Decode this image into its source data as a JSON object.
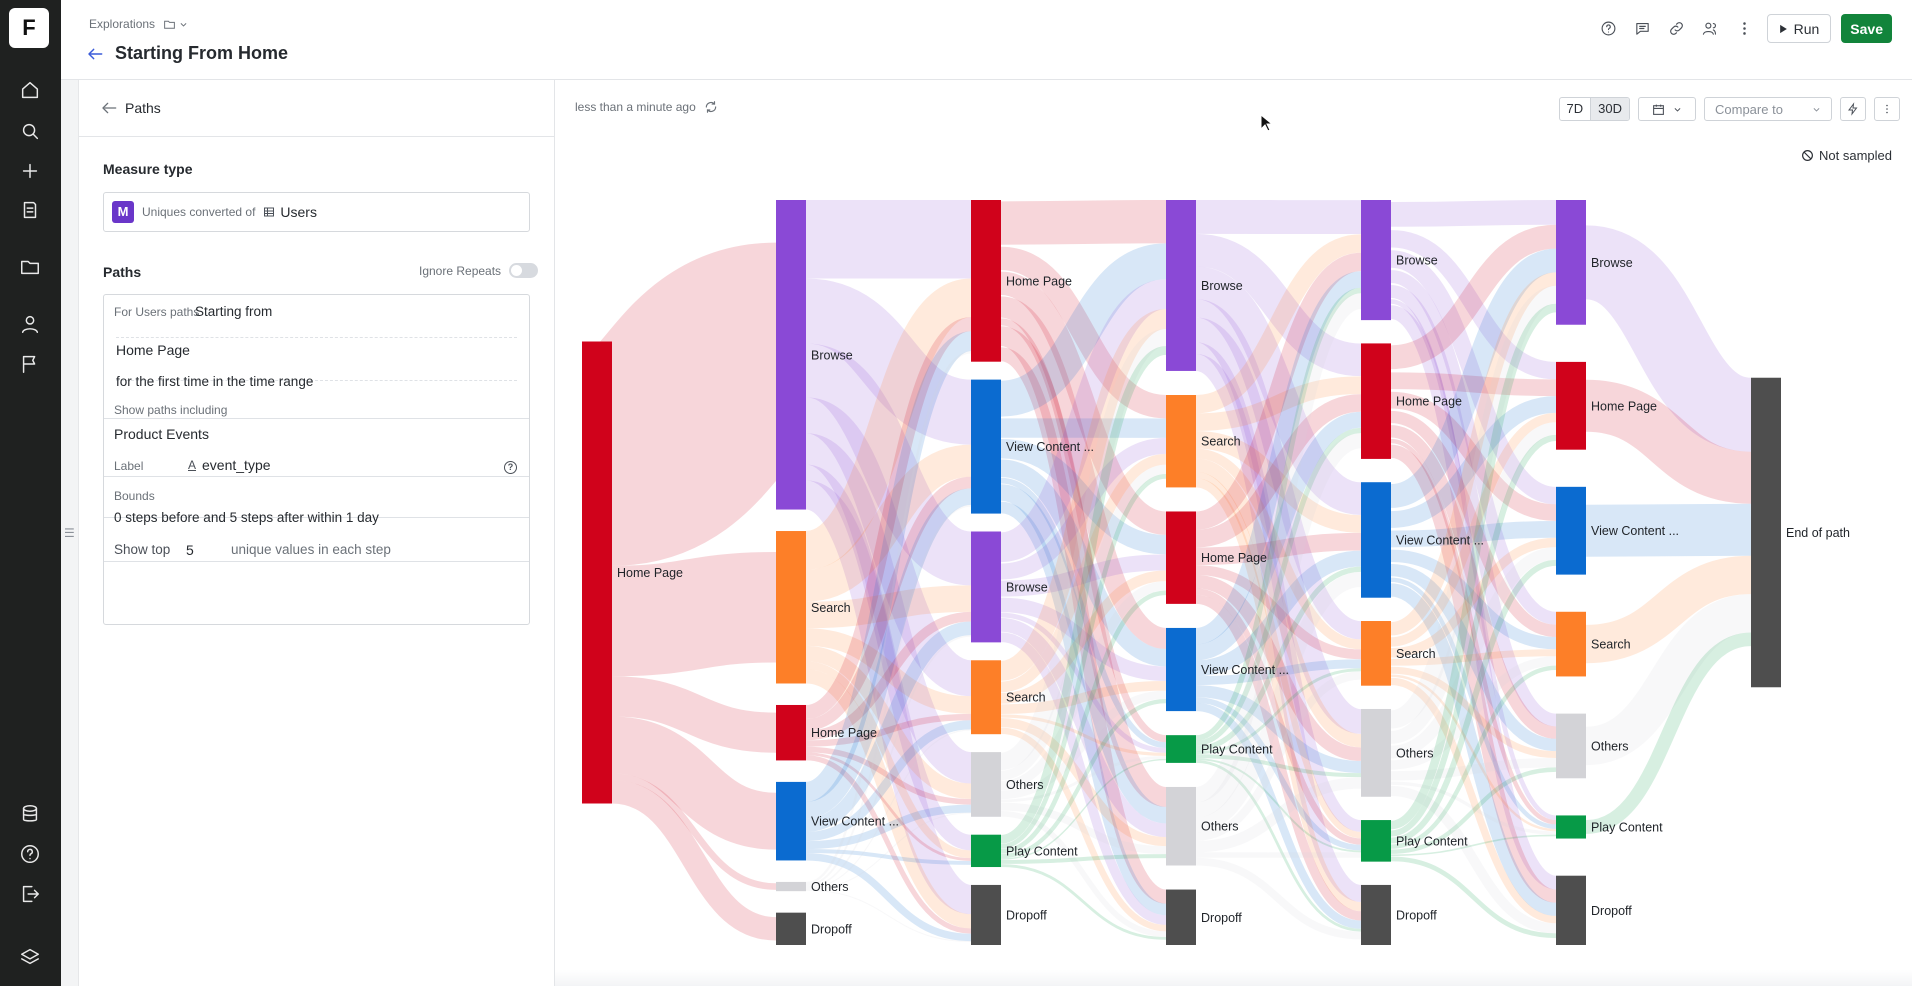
{
  "brand": {
    "logo_letter": "F",
    "accent": "#12843b"
  },
  "rail": {
    "icons": [
      "home-icon",
      "search-icon",
      "plus-icon",
      "notebook-icon",
      "folder-icon",
      "user-icon",
      "flag-icon"
    ],
    "bottom_icons": [
      "data-icon",
      "help-icon",
      "logout-icon",
      "layers-icon"
    ]
  },
  "header": {
    "breadcrumb": "Explorations",
    "title": "Starting From Home",
    "run_label": "Run",
    "save_label": "Save"
  },
  "panel": {
    "tab_label": "Paths",
    "measure_type_label": "Measure type",
    "measure_badge": "M",
    "measure_prefix": "Uniques converted of",
    "measure_entity": "Users",
    "paths_label": "Paths",
    "ignore_repeats_label": "Ignore Repeats",
    "ignore_repeats_on": false,
    "for_users_label": "For Users paths",
    "starting_from": "Starting from",
    "start_event": "Home Page",
    "first_time_text": "for the first time in the time range",
    "show_paths_label": "Show paths including",
    "show_paths_value": "Product Events",
    "label_label": "Label",
    "label_value": "event_type",
    "bounds_label": "Bounds",
    "bounds_value": "0 steps before and 5 steps after within 1 day",
    "show_top_label": "Show top",
    "show_top_value": "5",
    "show_top_suffix": "unique values in each step"
  },
  "toolbar": {
    "updated": "less than a minute ago",
    "range_7d": "7D",
    "range_30d": "30D",
    "selected_range": "30D",
    "compare_label": "Compare to",
    "not_sampled": "Not sampled"
  },
  "chart_data": {
    "type": "sankey",
    "colors": {
      "Home Page": "#d0021b",
      "Browse": "#8a49d6",
      "Search": "#fd7f28",
      "View Content ...": "#0b6bd0",
      "Play Content": "#079a47",
      "Others": "#d3d3d7",
      "Dropoff": "#4e4e4e",
      "End of path": "#4e4e4e"
    },
    "steps": [
      {
        "nodes": [
          {
            "label": "Home Page",
            "value": 100
          }
        ]
      },
      {
        "nodes": [
          {
            "label": "Browse",
            "value": 67
          },
          {
            "label": "Search",
            "value": 33
          },
          {
            "label": "Home Page",
            "value": 12
          },
          {
            "label": "View Content ...",
            "value": 17
          },
          {
            "label": "Others",
            "value": 2
          },
          {
            "label": "Dropoff",
            "value": 7
          }
        ]
      },
      {
        "nodes": [
          {
            "label": "Home Page",
            "value": 35
          },
          {
            "label": "View Content ...",
            "value": 29
          },
          {
            "label": "Browse",
            "value": 24
          },
          {
            "label": "Search",
            "value": 16
          },
          {
            "label": "Others",
            "value": 14
          },
          {
            "label": "Play Content",
            "value": 7
          },
          {
            "label": "Dropoff",
            "value": 13
          }
        ]
      },
      {
        "nodes": [
          {
            "label": "Browse",
            "value": 37
          },
          {
            "label": "Search",
            "value": 20
          },
          {
            "label": "Home Page",
            "value": 20
          },
          {
            "label": "View Content ...",
            "value": 18
          },
          {
            "label": "Play Content",
            "value": 6
          },
          {
            "label": "Others",
            "value": 17
          },
          {
            "label": "Dropoff",
            "value": 12
          }
        ]
      },
      {
        "nodes": [
          {
            "label": "Browse",
            "value": 26
          },
          {
            "label": "Home Page",
            "value": 25
          },
          {
            "label": "View Content ...",
            "value": 25
          },
          {
            "label": "Search",
            "value": 14
          },
          {
            "label": "Others",
            "value": 19
          },
          {
            "label": "Play Content",
            "value": 9
          },
          {
            "label": "Dropoff",
            "value": 13
          }
        ]
      },
      {
        "nodes": [
          {
            "label": "Browse",
            "value": 27
          },
          {
            "label": "Home Page",
            "value": 19
          },
          {
            "label": "View Content ...",
            "value": 19
          },
          {
            "label": "Search",
            "value": 14
          },
          {
            "label": "Others",
            "value": 14
          },
          {
            "label": "Play Content",
            "value": 5
          },
          {
            "label": "Dropoff",
            "value": 15
          }
        ]
      },
      {
        "nodes": [
          {
            "label": "End of path",
            "value": 67
          }
        ]
      }
    ]
  }
}
